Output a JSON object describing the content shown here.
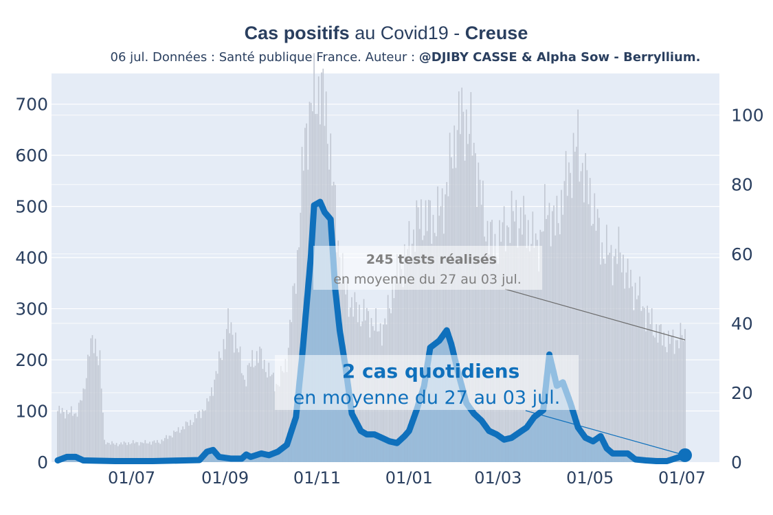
{
  "title": {
    "bold1": "Cas positifs",
    "mid": " au Covid19 - ",
    "bold2": "Creuse"
  },
  "subtitle": {
    "normal": "06 jul. Données : Santé publique France. Auteur : ",
    "bold": "@DJIBY CASSE & Alpha Sow - Berryllium."
  },
  "annotations": {
    "tests_bold": "245 tests réalisés",
    "tests_normal": "en moyenne du 27 au 03 jul.",
    "cases_bold": "2 cas quotidiens",
    "cases_normal": "en moyenne du 27 au 03 jul."
  },
  "colors": {
    "plot_bg": "#e5ecf6",
    "cases_line": "#0f70bc",
    "cases_fill": "#8ab4d8",
    "tests_bar": "#c2c8d3",
    "text_dark": "#2a3f5f",
    "annotation_grey": "#7f7f7f",
    "cases_annotation": "#0f70bc"
  },
  "chart_data": {
    "type": "line",
    "x_start": "2020-05-13",
    "x_end": "2021-07-03",
    "xticks": [
      {
        "date": "2020-07-01",
        "label": "01/07"
      },
      {
        "date": "2020-09-01",
        "label": "01/09"
      },
      {
        "date": "2020-11-01",
        "label": "01/11"
      },
      {
        "date": "2021-01-01",
        "label": "01/01"
      },
      {
        "date": "2021-03-01",
        "label": "01/03"
      },
      {
        "date": "2021-05-01",
        "label": "01/05"
      },
      {
        "date": "2021-07-01",
        "label": "01/07"
      }
    ],
    "y_left": {
      "range": [
        0,
        760
      ],
      "ticks": [
        0,
        100,
        200,
        300,
        400,
        500,
        600,
        700
      ]
    },
    "y_right": {
      "range": [
        0,
        112
      ],
      "ticks": [
        0,
        20,
        40,
        60,
        80,
        100
      ]
    },
    "series": [
      {
        "name": "tests",
        "kind": "bar",
        "axis": "left",
        "points": [
          [
            "2020-05-13",
            100
          ],
          [
            "2020-05-25",
            95
          ],
          [
            "2020-05-30",
            130
          ],
          [
            "2020-06-03",
            225
          ],
          [
            "2020-06-07",
            230
          ],
          [
            "2020-06-10",
            200
          ],
          [
            "2020-06-13",
            40
          ],
          [
            "2020-06-20",
            35
          ],
          [
            "2020-07-01",
            38
          ],
          [
            "2020-07-10",
            38
          ],
          [
            "2020-07-20",
            40
          ],
          [
            "2020-07-31",
            60
          ],
          [
            "2020-08-10",
            80
          ],
          [
            "2020-08-20",
            110
          ],
          [
            "2020-08-27",
            180
          ],
          [
            "2020-09-03",
            270
          ],
          [
            "2020-09-08",
            240
          ],
          [
            "2020-09-14",
            160
          ],
          [
            "2020-09-19",
            200
          ],
          [
            "2020-09-24",
            210
          ],
          [
            "2020-10-01",
            170
          ],
          [
            "2020-10-06",
            150
          ],
          [
            "2020-10-12",
            200
          ],
          [
            "2020-10-19",
            400
          ],
          [
            "2020-10-24",
            640
          ],
          [
            "2020-10-29",
            700
          ],
          [
            "2020-11-03",
            740
          ],
          [
            "2020-11-09",
            640
          ],
          [
            "2020-11-14",
            450
          ],
          [
            "2020-11-20",
            330
          ],
          [
            "2020-11-26",
            300
          ],
          [
            "2020-12-06",
            280
          ],
          [
            "2020-12-11",
            260
          ],
          [
            "2020-12-16",
            265
          ],
          [
            "2020-12-22",
            350
          ],
          [
            "2021-01-01",
            420
          ],
          [
            "2021-01-06",
            470
          ],
          [
            "2021-01-12",
            480
          ],
          [
            "2021-01-17",
            470
          ],
          [
            "2021-01-22",
            490
          ],
          [
            "2021-01-27",
            550
          ],
          [
            "2021-02-01",
            650
          ],
          [
            "2021-02-06",
            680
          ],
          [
            "2021-02-13",
            620
          ],
          [
            "2021-02-20",
            470
          ],
          [
            "2021-02-27",
            420
          ],
          [
            "2021-03-04",
            450
          ],
          [
            "2021-03-11",
            480
          ],
          [
            "2021-03-18",
            470
          ],
          [
            "2021-03-22",
            450
          ],
          [
            "2021-03-27",
            420
          ],
          [
            "2021-04-03",
            500
          ],
          [
            "2021-04-08",
            460
          ],
          [
            "2021-04-13",
            520
          ],
          [
            "2021-04-18",
            580
          ],
          [
            "2021-04-23",
            620
          ],
          [
            "2021-04-27",
            560
          ],
          [
            "2021-05-03",
            500
          ],
          [
            "2021-05-09",
            420
          ],
          [
            "2021-05-16",
            400
          ],
          [
            "2021-05-21",
            410
          ],
          [
            "2021-05-26",
            360
          ],
          [
            "2021-06-03",
            320
          ],
          [
            "2021-06-09",
            280
          ],
          [
            "2021-06-16",
            250
          ],
          [
            "2021-06-22",
            235
          ],
          [
            "2021-07-03",
            245
          ]
        ]
      },
      {
        "name": "cas",
        "kind": "area-line",
        "axis": "right",
        "points": [
          [
            "2020-05-13",
            0.5
          ],
          [
            "2020-05-19",
            1.5
          ],
          [
            "2020-05-25",
            1.5
          ],
          [
            "2020-05-30",
            0.5
          ],
          [
            "2020-06-20",
            0.3
          ],
          [
            "2020-07-15",
            0.3
          ],
          [
            "2020-08-05",
            0.5
          ],
          [
            "2020-08-15",
            0.6
          ],
          [
            "2020-08-20",
            3
          ],
          [
            "2020-08-24",
            3.5
          ],
          [
            "2020-08-28",
            1.5
          ],
          [
            "2020-09-05",
            1
          ],
          [
            "2020-09-12",
            1
          ],
          [
            "2020-09-15",
            2.2
          ],
          [
            "2020-09-18",
            1.5
          ],
          [
            "2020-09-25",
            2.5
          ],
          [
            "2020-09-30",
            2
          ],
          [
            "2020-10-06",
            3
          ],
          [
            "2020-10-12",
            5
          ],
          [
            "2020-10-18",
            13
          ],
          [
            "2020-10-22",
            30
          ],
          [
            "2020-10-25",
            45
          ],
          [
            "2020-10-28",
            60
          ],
          [
            "2020-10-30",
            74
          ],
          [
            "2020-11-03",
            75
          ],
          [
            "2020-11-06",
            72
          ],
          [
            "2020-11-10",
            70
          ],
          [
            "2020-11-13",
            50
          ],
          [
            "2020-11-16",
            38
          ],
          [
            "2020-11-20",
            27
          ],
          [
            "2020-11-24",
            14
          ],
          [
            "2020-11-30",
            9
          ],
          [
            "2020-12-04",
            8
          ],
          [
            "2020-12-09",
            8
          ],
          [
            "2020-12-14",
            7
          ],
          [
            "2020-12-19",
            6
          ],
          [
            "2020-12-24",
            5.5
          ],
          [
            "2020-12-29",
            7.5
          ],
          [
            "2021-01-01",
            9
          ],
          [
            "2021-01-06",
            15
          ],
          [
            "2021-01-11",
            22
          ],
          [
            "2021-01-15",
            33
          ],
          [
            "2021-01-21",
            35
          ],
          [
            "2021-01-26",
            38
          ],
          [
            "2021-01-29",
            34
          ],
          [
            "2021-02-03",
            25
          ],
          [
            "2021-02-08",
            17
          ],
          [
            "2021-02-13",
            14
          ],
          [
            "2021-02-18",
            12
          ],
          [
            "2021-02-23",
            9
          ],
          [
            "2021-02-28",
            8
          ],
          [
            "2021-03-05",
            6.5
          ],
          [
            "2021-03-10",
            7
          ],
          [
            "2021-03-15",
            8.5
          ],
          [
            "2021-03-20",
            10
          ],
          [
            "2021-03-25",
            13
          ],
          [
            "2021-03-31",
            15
          ],
          [
            "2021-04-04",
            31
          ],
          [
            "2021-04-09",
            22
          ],
          [
            "2021-04-13",
            23
          ],
          [
            "2021-04-18",
            17
          ],
          [
            "2021-04-23",
            10
          ],
          [
            "2021-04-28",
            7
          ],
          [
            "2021-05-03",
            6
          ],
          [
            "2021-05-08",
            7.5
          ],
          [
            "2021-05-12",
            4
          ],
          [
            "2021-05-16",
            2.5
          ],
          [
            "2021-05-21",
            2.5
          ],
          [
            "2021-05-26",
            2.5
          ],
          [
            "2021-05-31",
            0.8
          ],
          [
            "2021-06-07",
            0.5
          ],
          [
            "2021-06-14",
            0.3
          ],
          [
            "2021-06-21",
            0.3
          ],
          [
            "2021-07-03",
            2
          ]
        ]
      }
    ]
  }
}
